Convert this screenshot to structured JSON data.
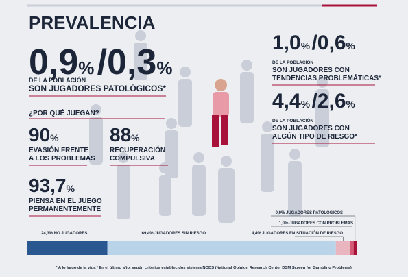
{
  "title": "PREVALENCIA",
  "main": {
    "figure": [
      "0,9",
      "%",
      "/",
      "0,3",
      "%"
    ],
    "lines": [
      "DE LA POBLACIÓN",
      "SON JUGADORES PATOLÓGICOS*"
    ]
  },
  "right": [
    {
      "figure": [
        "1,0",
        "%",
        "/",
        "0,6",
        "%"
      ],
      "lines": [
        "DE LA POBLACIÓN",
        "SON JUGADORES CON",
        "TENDENCIAS PROBLEMÁTICAS*"
      ]
    },
    {
      "figure": [
        "4,4",
        "%",
        "/",
        "2,6",
        "%"
      ],
      "lines": [
        "DE LA POBLACIÓN",
        "SON JUGADORES CON",
        "ALGÚN TIPO DE RIESGO*"
      ]
    }
  ],
  "why": {
    "question": "¿POR QUÉ JUEGAN?",
    "reasons": [
      {
        "figure": [
          "90",
          "%"
        ],
        "lines": [
          "EVASIÓN FRENTE",
          "A LOS PROBLEMAS"
        ]
      },
      {
        "figure": [
          "88",
          "%"
        ],
        "lines": [
          "RECUPERACIÓN",
          "COMPULSIVA"
        ]
      },
      {
        "figure": [
          "93,7",
          "%"
        ],
        "lines": [
          "PIENSA EN EL JUEGO",
          "PERMANENTEMENTE"
        ]
      }
    ]
  },
  "bar": {
    "type": "stacked-bar",
    "segments": [
      {
        "value": 24.3,
        "label": "24,3% NO JUGADORES",
        "color": "#2b5791"
      },
      {
        "value": 69.4,
        "label": "69,4% JUGADORES SIN RIESGO",
        "color": "#b9d3e8"
      },
      {
        "value": 4.4,
        "label": "4,4% JUGADORES EN SITUACIÓN DE RIESGO",
        "color": "#e9b6c0"
      },
      {
        "value": 1.0,
        "label": "1,0% JUGADORES CON PROBLEMAS",
        "color": "#d45b77"
      },
      {
        "value": 0.9,
        "label": "0,9% JUGADORES PATOLÓGICOS",
        "color": "#a8123a"
      }
    ]
  },
  "footnote": "* A lo largo de la vida / En el último año, según criterios establecidos sistema NODS (National Opinion Research Center DSM Screen for Gambling Problems)"
}
